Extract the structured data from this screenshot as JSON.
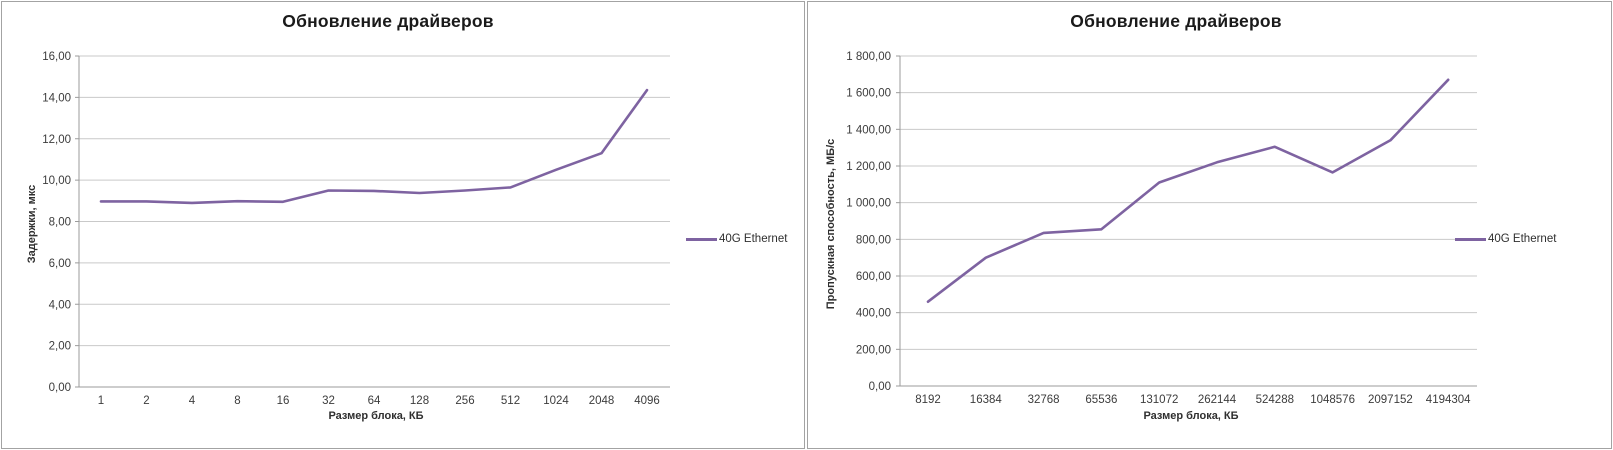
{
  "colors": {
    "series_line": "#7E63A1",
    "gridline": "#C9C9C9",
    "axis": "#9B9B9B",
    "tick_text": "#3C3C3C",
    "title_text": "#1A1A1A",
    "panel_border": "#A3A3A3"
  },
  "chart_data": [
    {
      "type": "line",
      "title": "Обновление драйверов",
      "xlabel": "Размер блока, КБ",
      "ylabel": "Задержки, мкс",
      "legend_position": "right",
      "grid": true,
      "categories": [
        "1",
        "2",
        "4",
        "8",
        "16",
        "32",
        "64",
        "128",
        "256",
        "512",
        "1024",
        "2048",
        "4096"
      ],
      "series": [
        {
          "name": "40G Ethernet",
          "values": [
            8.97,
            8.97,
            8.9,
            8.98,
            8.95,
            9.5,
            9.48,
            9.38,
            9.5,
            9.65,
            10.5,
            11.3,
            14.35
          ]
        }
      ],
      "ylim": [
        0,
        16
      ],
      "ytick_step": 2,
      "ytick_labels": [
        "0,00",
        "2,00",
        "4,00",
        "6,00",
        "8,00",
        "10,00",
        "12,00",
        "14,00",
        "16,00"
      ]
    },
    {
      "type": "line",
      "title": "Обновление драйверов",
      "xlabel": "Размер блока, КБ",
      "ylabel": "Пропускная  способность,  МБ/с",
      "legend_position": "right",
      "grid": true,
      "categories": [
        "8192",
        "16384",
        "32768",
        "65536",
        "131072",
        "262144",
        "524288",
        "1048576",
        "2097152",
        "4194304"
      ],
      "series": [
        {
          "name": "40G Ethernet",
          "values": [
            460,
            700,
            835,
            855,
            1110,
            1220,
            1305,
            1165,
            1340,
            1670
          ]
        }
      ],
      "ylim": [
        0,
        1800
      ],
      "ytick_step": 200,
      "ytick_labels": [
        "0,00",
        "200,00",
        "400,00",
        "600,00",
        "800,00",
        "1 000,00",
        "1 200,00",
        "1 400,00",
        "1 600,00",
        "1 800,00"
      ]
    }
  ]
}
